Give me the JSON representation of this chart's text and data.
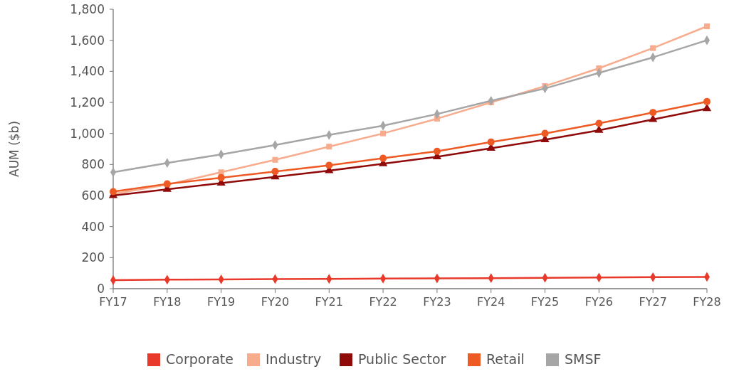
{
  "chart_data": {
    "type": "line",
    "ylabel": "AUM ($b)",
    "categories": [
      "FY17",
      "FY18",
      "FY19",
      "FY20",
      "FY21",
      "FY22",
      "FY23",
      "FY24",
      "FY25",
      "FY26",
      "FY27",
      "FY28"
    ],
    "series": [
      {
        "name": "Corporate",
        "color": "#e8392a",
        "marker": "diamond",
        "values": [
          55,
          58,
          60,
          62,
          63,
          65,
          66,
          68,
          70,
          72,
          74,
          76
        ]
      },
      {
        "name": "Industry",
        "color": "#f7ac8e",
        "marker": "square",
        "values": [
          610,
          670,
          750,
          830,
          915,
          1000,
          1095,
          1200,
          1305,
          1420,
          1550,
          1690
        ]
      },
      {
        "name": "Public Sector",
        "color": "#900a0a",
        "marker": "triangle",
        "values": [
          600,
          640,
          680,
          720,
          760,
          805,
          850,
          905,
          960,
          1020,
          1090,
          1160
        ]
      },
      {
        "name": "Retail",
        "color": "#ee5a24",
        "marker": "circle",
        "values": [
          625,
          675,
          715,
          755,
          795,
          840,
          885,
          945,
          1000,
          1065,
          1135,
          1205
        ]
      },
      {
        "name": "SMSF",
        "color": "#a6a6a6",
        "marker": "diamond",
        "values": [
          750,
          810,
          865,
          925,
          990,
          1050,
          1125,
          1210,
          1290,
          1390,
          1490,
          1600
        ]
      }
    ],
    "ylim": [
      0,
      1800
    ],
    "yticks": [
      0,
      {
        "value": 200,
        "label": "200"
      },
      {
        "value": 400,
        "label": "400"
      },
      {
        "value": 600,
        "label": "600"
      },
      {
        "value": 800,
        "label": "800"
      },
      {
        "value": 1000,
        "label": "1,000"
      },
      {
        "value": 1200,
        "label": "1,200"
      },
      {
        "value": 1400,
        "label": "1,400"
      },
      {
        "value": 1600,
        "label": "1,600"
      },
      {
        "value": 1800,
        "label": "1,800"
      }
    ],
    "grid": false,
    "legend": "bottom",
    "line_style": "solid"
  }
}
